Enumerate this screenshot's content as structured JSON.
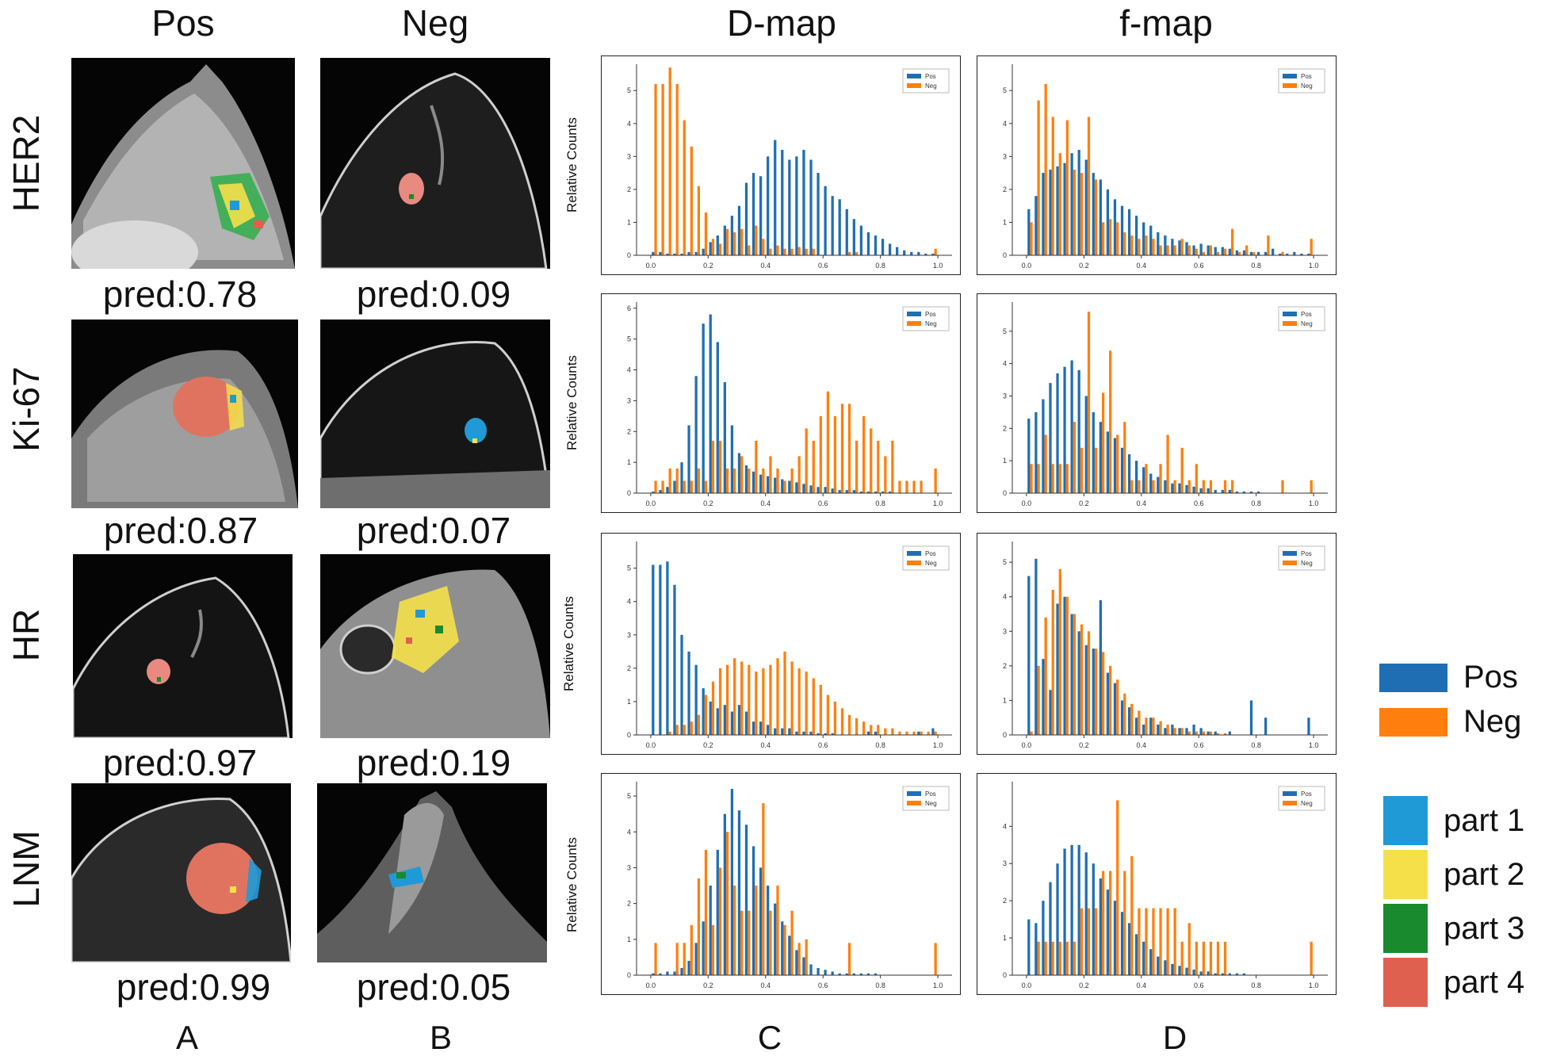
{
  "column_headers": {
    "pos": "Pos",
    "neg": "Neg",
    "dmap": "D-map",
    "fmap": "f-map"
  },
  "row_headers": [
    "HER2",
    "Ki-67",
    "HR",
    "LNM"
  ],
  "predictions": {
    "pos": [
      "pred:0.78",
      "pred:0.87",
      "pred:0.97",
      "pred:0.99"
    ],
    "neg": [
      "pred:0.09",
      "pred:0.07",
      "pred:0.19",
      "pred:0.05"
    ]
  },
  "column_letters": [
    "A",
    "B",
    "C",
    "D"
  ],
  "legend": {
    "classes": [
      {
        "label": "Pos",
        "color": "#1f6eb4"
      },
      {
        "label": "Neg",
        "color": "#ff7f0e"
      }
    ],
    "parts": [
      {
        "label": "part 1",
        "color": "#1f9ad6"
      },
      {
        "label": "part 2",
        "color": "#f5e04a"
      },
      {
        "label": "part 3",
        "color": "#1a8a2e"
      },
      {
        "label": "part 4",
        "color": "#e0604f"
      }
    ]
  },
  "chart_data": [
    {
      "type": "bar",
      "title": "D-map",
      "row": "HER2",
      "ylabel": "Relative Counts",
      "xlim": [
        0,
        1
      ],
      "ylim": [
        0,
        5.8
      ],
      "xticks": [
        "0.0",
        "0.2",
        "0.4",
        "0.6",
        "0.8",
        "1.0"
      ],
      "yticks": [
        "0",
        "1",
        "2",
        "3",
        "4",
        "5"
      ],
      "legend": [
        "Pos",
        "Neg"
      ],
      "series": [
        {
          "name": "Pos",
          "values": [
            0.1,
            0.1,
            0.05,
            0.05,
            0.05,
            0.1,
            0.1,
            0.2,
            0.4,
            0.6,
            0.9,
            1.2,
            1.5,
            2.2,
            2.5,
            2.4,
            3.0,
            3.5,
            3.2,
            2.9,
            3.0,
            3.2,
            2.9,
            2.5,
            2.1,
            1.8,
            1.7,
            1.4,
            1.1,
            0.9,
            0.7,
            0.6,
            0.5,
            0.35,
            0.25,
            0.15,
            0.1,
            0.1,
            0.05,
            0.05
          ]
        },
        {
          "name": "Neg",
          "values": [
            5.2,
            5.2,
            5.7,
            5.2,
            4.1,
            3.3,
            2.1,
            1.3,
            0.5,
            0.35,
            0.8,
            0.7,
            0.8,
            0.3,
            0.9,
            0.5,
            0.2,
            0.3,
            0.2,
            0.2,
            0.25,
            0.2,
            0.2,
            0,
            0,
            0,
            0,
            0.1,
            0.1,
            0,
            0,
            0,
            0,
            0,
            0,
            0,
            0,
            0,
            0,
            0.2
          ]
        }
      ]
    },
    {
      "type": "bar",
      "title": "f-map",
      "row": "HER2",
      "ylabel": "",
      "xlim": [
        0,
        1
      ],
      "ylim": [
        0,
        5.8
      ],
      "xticks": [
        "0.0",
        "0.2",
        "0.4",
        "0.6",
        "0.8",
        "1.0"
      ],
      "yticks": [
        "0",
        "1",
        "2",
        "3",
        "4",
        "5"
      ],
      "legend": [
        "Pos",
        "Neg"
      ],
      "series": [
        {
          "name": "Pos",
          "values": [
            1.4,
            1.8,
            2.5,
            2.6,
            2.7,
            2.8,
            3.1,
            3.2,
            2.9,
            2.5,
            2.3,
            2.0,
            1.7,
            1.5,
            1.4,
            1.2,
            1.0,
            0.9,
            0.7,
            0.6,
            0.5,
            0.45,
            0.4,
            0.3,
            0.35,
            0.3,
            0.25,
            0.25,
            0.2,
            0.15,
            0.15,
            0.1,
            0.1,
            0.1,
            0.2,
            0.05,
            0.05,
            0.1,
            0.05,
            0.05
          ]
        },
        {
          "name": "Neg",
          "values": [
            1.0,
            4.7,
            5.2,
            4.2,
            3.1,
            4.1,
            2.6,
            2.5,
            4.2,
            2.3,
            1.0,
            1.1,
            1.0,
            0.7,
            0.6,
            0.5,
            0.6,
            0.5,
            0.3,
            0.3,
            0.3,
            0.5,
            0.3,
            0.2,
            0.1,
            0.3,
            0.1,
            0.2,
            0.8,
            0.1,
            0.3,
            0.1,
            0,
            0.6,
            0,
            0.1,
            0,
            0,
            0,
            0.5
          ]
        }
      ]
    },
    {
      "type": "bar",
      "title": "D-map",
      "row": "Ki-67",
      "ylabel": "Relative Counts",
      "xlim": [
        0,
        1
      ],
      "ylim": [
        0,
        6.2
      ],
      "xticks": [
        "0.0",
        "0.2",
        "0.4",
        "0.6",
        "0.8",
        "1.0"
      ],
      "yticks": [
        "0",
        "1",
        "2",
        "3",
        "4",
        "5",
        "6"
      ],
      "legend": [
        "Pos",
        "Neg"
      ],
      "series": [
        {
          "name": "Pos",
          "values": [
            0.05,
            0.1,
            0.2,
            0.4,
            1.0,
            2.2,
            3.8,
            5.5,
            5.8,
            4.9,
            3.6,
            2.2,
            1.3,
            0.9,
            0.7,
            0.6,
            0.55,
            0.5,
            0.45,
            0.4,
            0.35,
            0.3,
            0.25,
            0.2,
            0.2,
            0.15,
            0.1,
            0.1,
            0.1,
            0.05,
            0.05,
            0.05,
            0.05,
            0.05,
            0,
            0,
            0,
            0,
            0,
            0
          ]
        },
        {
          "name": "Neg",
          "values": [
            0.4,
            0.4,
            0.8,
            0.8,
            0.4,
            0.4,
            0.8,
            0.4,
            1.7,
            1.7,
            0.8,
            0.8,
            1.2,
            0.8,
            1.7,
            0.8,
            1.2,
            0.8,
            0.4,
            0.8,
            1.2,
            2.1,
            1.7,
            2.5,
            3.3,
            2.5,
            2.9,
            2.9,
            1.7,
            2.5,
            2.1,
            1.7,
            1.2,
            1.7,
            0.4,
            0.4,
            0.4,
            0.4,
            0,
            0.8
          ]
        }
      ]
    },
    {
      "type": "bar",
      "title": "f-map",
      "row": "Ki-67",
      "ylabel": "",
      "xlim": [
        0,
        1
      ],
      "ylim": [
        0,
        5.9
      ],
      "xticks": [
        "0.0",
        "0.2",
        "0.4",
        "0.6",
        "0.8",
        "1.0"
      ],
      "yticks": [
        "0",
        "1",
        "2",
        "3",
        "4",
        "5"
      ],
      "legend": [
        "Pos",
        "Neg"
      ],
      "series": [
        {
          "name": "Pos",
          "values": [
            2.3,
            2.5,
            2.9,
            3.4,
            3.7,
            3.9,
            4.1,
            3.8,
            3.0,
            2.5,
            2.2,
            1.9,
            1.7,
            1.4,
            1.2,
            1.0,
            0.8,
            0.6,
            0.5,
            0.4,
            0.3,
            0.3,
            0.25,
            0.2,
            0.15,
            0.15,
            0.1,
            0.1,
            0.1,
            0.05,
            0.05,
            0.05,
            0.05,
            0,
            0,
            0,
            0,
            0,
            0,
            0
          ]
        },
        {
          "name": "Neg",
          "values": [
            0.9,
            0.9,
            1.8,
            0.9,
            0.9,
            0.9,
            2.2,
            1.4,
            5.6,
            1.4,
            3.1,
            4.4,
            1.8,
            2.2,
            0.4,
            0.4,
            0.9,
            0.4,
            0.9,
            1.8,
            0.4,
            1.4,
            0.4,
            0.9,
            0.4,
            0.4,
            0,
            0.4,
            0.4,
            0,
            0,
            0,
            0,
            0,
            0,
            0.4,
            0,
            0,
            0,
            0.4
          ]
        }
      ]
    },
    {
      "type": "bar",
      "title": "D-map",
      "row": "HR",
      "ylabel": "Relative Counts",
      "xlim": [
        0,
        1
      ],
      "ylim": [
        0,
        5.8
      ],
      "xticks": [
        "0.0",
        "0.2",
        "0.4",
        "0.6",
        "0.8",
        "1.0"
      ],
      "yticks": [
        "0",
        "1",
        "2",
        "3",
        "4",
        "5"
      ],
      "legend": [
        "Pos",
        "Neg"
      ],
      "series": [
        {
          "name": "Pos",
          "values": [
            5.1,
            5.1,
            5.2,
            4.5,
            3.0,
            2.5,
            2.1,
            1.4,
            1.0,
            0.8,
            0.9,
            0.7,
            0.9,
            0.7,
            0.4,
            0.4,
            0.3,
            0.2,
            0.2,
            0.2,
            0.1,
            0.1,
            0.1,
            0.05,
            0.05,
            0.05,
            0,
            0,
            0,
            0,
            0.1,
            0.1,
            0,
            0,
            0,
            0,
            0,
            0.1,
            0,
            0.2
          ]
        },
        {
          "name": "Neg",
          "values": [
            0,
            0,
            0.1,
            0.3,
            0.3,
            0.4,
            0.6,
            1.2,
            1.6,
            2.0,
            2.1,
            2.3,
            2.2,
            2.1,
            1.9,
            2.0,
            2.1,
            2.3,
            2.5,
            2.2,
            2.0,
            1.9,
            1.7,
            1.5,
            1.2,
            1.0,
            0.8,
            0.6,
            0.5,
            0.4,
            0.3,
            0.3,
            0.2,
            0.2,
            0.1,
            0.1,
            0.1,
            0.1,
            0.1,
            0.1
          ]
        }
      ]
    },
    {
      "type": "bar",
      "title": "f-map",
      "row": "HR",
      "ylabel": "",
      "xlim": [
        0,
        1
      ],
      "ylim": [
        0,
        5.6
      ],
      "xticks": [
        "0.0",
        "0.2",
        "0.4",
        "0.6",
        "0.8",
        "1.0"
      ],
      "yticks": [
        "0",
        "1",
        "2",
        "3",
        "4",
        "5"
      ],
      "legend": [
        "Pos",
        "Neg"
      ],
      "series": [
        {
          "name": "Pos",
          "values": [
            4.6,
            5.1,
            2.2,
            1.3,
            3.8,
            4.0,
            3.5,
            3.0,
            2.6,
            2.5,
            3.9,
            1.8,
            1.5,
            1.0,
            0.8,
            0.5,
            0.3,
            0.5,
            0.3,
            0.2,
            0.3,
            0.2,
            0.2,
            0.3,
            0.2,
            0.1,
            0.1,
            0,
            0.1,
            0,
            0,
            1.0,
            0,
            0.5,
            0,
            0,
            0,
            0,
            0,
            0.5
          ]
        },
        {
          "name": "Neg",
          "values": [
            0.1,
            2.0,
            3.4,
            4.2,
            4.8,
            4.0,
            3.5,
            3.2,
            3.0,
            2.5,
            2.4,
            2.0,
            1.6,
            1.2,
            0.9,
            0.7,
            0.5,
            0.5,
            0.4,
            0.3,
            0.2,
            0.2,
            0.1,
            0.1,
            0.1,
            0.1,
            0.05,
            0.05,
            0,
            0,
            0,
            0,
            0,
            0,
            0,
            0,
            0,
            0,
            0,
            0
          ]
        }
      ]
    },
    {
      "type": "bar",
      "title": "D-map",
      "row": "LNM",
      "ylabel": "Relative Counts",
      "xlim": [
        0,
        1
      ],
      "ylim": [
        0,
        5.4
      ],
      "xticks": [
        "0.0",
        "0.2",
        "0.4",
        "0.6",
        "0.8",
        "1.0"
      ],
      "yticks": [
        "0",
        "1",
        "2",
        "3",
        "4",
        "5"
      ],
      "legend": [
        "Pos",
        "Neg"
      ],
      "series": [
        {
          "name": "Pos",
          "values": [
            0.05,
            0.05,
            0.1,
            0.1,
            0.2,
            0.4,
            0.9,
            1.5,
            2.5,
            3.5,
            4.5,
            5.2,
            4.6,
            4.2,
            3.6,
            3.0,
            2.5,
            2.0,
            1.5,
            1.1,
            0.7,
            0.5,
            0.3,
            0.2,
            0.15,
            0.1,
            0.05,
            0.05,
            0.05,
            0.05,
            0.05,
            0.05,
            0,
            0,
            0,
            0,
            0,
            0,
            0,
            0
          ]
        },
        {
          "name": "Neg",
          "values": [
            0.9,
            0,
            0,
            0.9,
            0.9,
            1.4,
            2.7,
            3.5,
            1.4,
            3.0,
            4.0,
            2.5,
            1.8,
            1.8,
            2.5,
            4.8,
            1.8,
            2.5,
            1.4,
            1.8,
            0.9,
            1.0,
            0,
            0,
            0,
            0,
            0,
            0.9,
            0,
            0,
            0,
            0,
            0,
            0,
            0,
            0,
            0,
            0,
            0,
            0.9
          ]
        }
      ]
    },
    {
      "type": "bar",
      "title": "f-map",
      "row": "LNM",
      "ylabel": "",
      "xlim": [
        0,
        1
      ],
      "ylim": [
        0,
        5.2
      ],
      "xticks": [
        "0.0",
        "0.2",
        "0.4",
        "0.6",
        "0.8",
        "1.0"
      ],
      "yticks": [
        "0",
        "1",
        "2",
        "3",
        "4"
      ],
      "legend": [
        "Pos",
        "Neg"
      ],
      "series": [
        {
          "name": "Pos",
          "values": [
            1.5,
            1.4,
            2.0,
            2.5,
            3.0,
            3.4,
            3.5,
            3.5,
            3.3,
            3.0,
            2.6,
            2.3,
            2.0,
            1.7,
            1.4,
            1.1,
            0.9,
            0.7,
            0.5,
            0.4,
            0.3,
            0.25,
            0.2,
            0.15,
            0.1,
            0.1,
            0.05,
            0.05,
            0.05,
            0.05,
            0.05,
            0,
            0,
            0,
            0,
            0,
            0,
            0,
            0,
            0
          ]
        },
        {
          "name": "Neg",
          "values": [
            0,
            0.9,
            0.9,
            0.9,
            0.9,
            0.9,
            0.9,
            1.8,
            1.8,
            1.8,
            2.8,
            2.8,
            4.7,
            2.8,
            3.2,
            1.8,
            1.8,
            1.8,
            1.8,
            1.8,
            1.8,
            0.9,
            1.4,
            0.9,
            0.9,
            0.9,
            0.9,
            0.9,
            0,
            0,
            0,
            0,
            0,
            0,
            0,
            0,
            0,
            0,
            0,
            0.9
          ]
        }
      ]
    }
  ]
}
